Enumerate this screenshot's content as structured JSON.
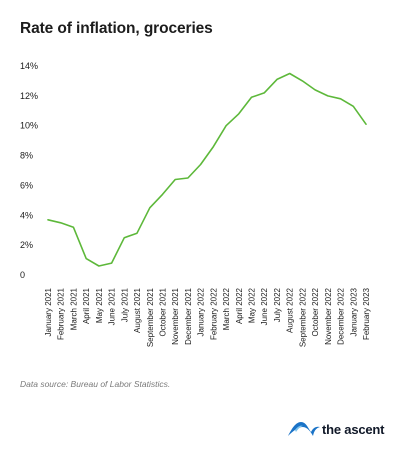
{
  "title": "Rate of inflation, groceries",
  "source": "Data source: Bureau of Labor Statistics.",
  "brand": {
    "name": "the ascent",
    "logo_icon": "ascent-logo-icon"
  },
  "colors": {
    "line": "#5db83a",
    "text": "#1c1c1c",
    "muted": "#7a7a7a",
    "brand_blue": "#1a73c7",
    "brand_light": "#7cc4f0"
  },
  "chart_data": {
    "type": "line",
    "title": "Rate of inflation, groceries",
    "xlabel": "",
    "ylabel": "",
    "ylim": [
      0,
      14
    ],
    "y_ticks": [
      0,
      2,
      4,
      6,
      8,
      10,
      12,
      14
    ],
    "y_tick_labels": [
      "0",
      "2%",
      "4%",
      "6%",
      "8%",
      "10%",
      "12%",
      "14%"
    ],
    "grid": false,
    "categories": [
      "January 2021",
      "February 2021",
      "March 2021",
      "April 2021",
      "May 2021",
      "June 2021",
      "July 2021",
      "August 2021",
      "September 2021",
      "October 2021",
      "November 2021",
      "December 2021",
      "January 2022",
      "February 2022",
      "March 2022",
      "April 2022",
      "May 2022",
      "June 2022",
      "July 2022",
      "August 2022",
      "September 2022",
      "October 2022",
      "November 2022",
      "December 2022",
      "January 2023",
      "February 2023"
    ],
    "series": [
      {
        "values": [
          3.7,
          3.5,
          3.2,
          1.1,
          0.6,
          0.8,
          2.5,
          2.8,
          4.5,
          5.4,
          6.4,
          6.5,
          7.4,
          8.6,
          10.0,
          10.8,
          11.9,
          12.2,
          13.1,
          13.5,
          13.0,
          12.4,
          12.0,
          11.8,
          11.3,
          10.1
        ]
      }
    ]
  }
}
